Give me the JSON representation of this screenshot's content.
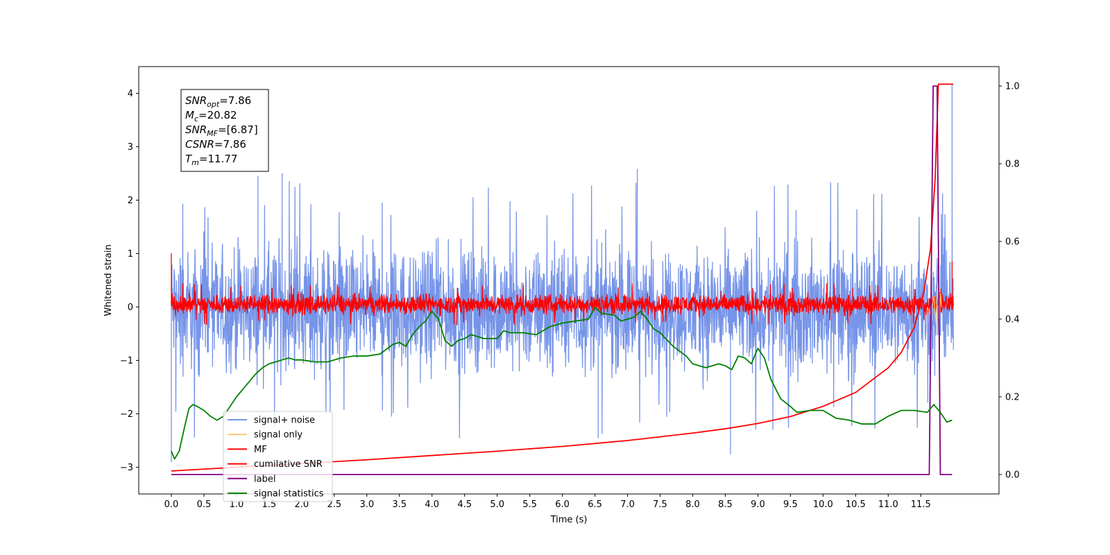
{
  "chart_data": {
    "type": "line",
    "title": "",
    "xlabel": "Time (s)",
    "ylabel": "Whitened strain",
    "y2label": "",
    "xlim": [
      -0.5,
      12.7
    ],
    "ylim": [
      -3.5,
      4.5
    ],
    "y2lim": [
      -0.05,
      1.05
    ],
    "x_ticks": [
      "0.0",
      "0.5",
      "1.0",
      "1.5",
      "2.0",
      "2.5",
      "3.0",
      "3.5",
      "4.0",
      "4.5",
      "5.0",
      "5.5",
      "6.0",
      "6.5",
      "7.0",
      "7.5",
      "8.0",
      "8.5",
      "9.0",
      "9.5",
      "10.0",
      "10.5",
      "11.0",
      "11.5"
    ],
    "y_ticks": [
      "−3",
      "−2",
      "−1",
      "0",
      "1",
      "2",
      "3",
      "4"
    ],
    "y2_ticks": [
      "0.0",
      "0.2",
      "0.4",
      "0.6",
      "0.8",
      "1.0"
    ],
    "info_box": {
      "lines": [
        {
          "sym": "SNR",
          "sub": "opt",
          "val": "=7.86"
        },
        {
          "sym": "M",
          "sub": "c",
          "val": "=20.82"
        },
        {
          "sym": "SNR",
          "sub": "MF",
          "val": "=[6.87]"
        },
        {
          "sym": "CSNR",
          "sub": "",
          "val": "=7.86"
        },
        {
          "sym": "T",
          "sub": "m",
          "val": "=11.77"
        }
      ]
    },
    "legend": {
      "placement": "lower-left",
      "entries": [
        {
          "label": "signal+ noise",
          "color": "#7694e8"
        },
        {
          "label": "signal only",
          "color": "#f7c778"
        },
        {
          "label": "MF",
          "color": "#ff0000"
        },
        {
          "label": "cumilative SNR",
          "color": "#ff0000"
        },
        {
          "label": "label",
          "color": "#800080"
        },
        {
          "label": "signal statistics",
          "color": "#008000"
        }
      ]
    },
    "series": [
      {
        "name": "signal+ noise",
        "kind": "noise_band",
        "axis": "left",
        "color": "#7694e8",
        "x_range": [
          0.0,
          12.0
        ],
        "typical_range": [
          -1.6,
          1.5
        ],
        "peaks": [
          {
            "x": 0.0,
            "y": -2.9
          },
          {
            "x": 1.33,
            "y": 2.45
          },
          {
            "x": 1.7,
            "y": 2.5
          },
          {
            "x": 7.15,
            "y": 2.58
          },
          {
            "x": 6.55,
            "y": -2.45
          },
          {
            "x": 8.58,
            "y": -2.75
          },
          {
            "x": 11.98,
            "y": 4.17
          }
        ]
      },
      {
        "name": "MF",
        "kind": "noise_band",
        "axis": "left",
        "color": "#ff0000",
        "x_range": [
          0.0,
          12.0
        ],
        "typical_range": [
          -0.2,
          0.3
        ],
        "peaks": [
          {
            "x": 0.0,
            "y": 1.0
          },
          {
            "x": 0.0,
            "y": 0.4
          },
          {
            "x": 11.98,
            "y": 0.85
          }
        ]
      },
      {
        "name": "signal only",
        "kind": "line",
        "axis": "left",
        "color": "#f7c778",
        "x": [
          11.6,
          11.65,
          11.7,
          11.73,
          11.76,
          11.78,
          11.8,
          11.82
        ],
        "y": [
          0.0,
          -0.15,
          0.2,
          -0.3,
          0.45,
          -0.5,
          0.25,
          0.0
        ]
      },
      {
        "name": "cumilative SNR",
        "kind": "line",
        "axis": "left",
        "color": "#ff0000",
        "x": [
          0.0,
          1.0,
          2.0,
          3.0,
          4.0,
          5.0,
          6.0,
          7.0,
          8.0,
          8.5,
          9.0,
          9.5,
          10.0,
          10.5,
          11.0,
          11.2,
          11.4,
          11.55,
          11.65,
          11.72,
          11.77,
          11.8,
          12.0
        ],
        "y": [
          -3.07,
          -3.0,
          -2.93,
          -2.86,
          -2.78,
          -2.7,
          -2.61,
          -2.5,
          -2.36,
          -2.28,
          -2.18,
          -2.05,
          -1.86,
          -1.6,
          -1.14,
          -0.85,
          -0.38,
          0.3,
          1.1,
          2.4,
          4.17,
          4.17,
          4.17
        ]
      },
      {
        "name": "label",
        "kind": "line",
        "axis": "right",
        "color": "#800080",
        "x": [
          0.0,
          11.63,
          11.69,
          11.75,
          11.8,
          11.86,
          11.98
        ],
        "y": [
          0.0,
          0.0,
          1.0,
          1.0,
          0.0,
          0.0,
          0.0
        ]
      },
      {
        "name": "signal statistics",
        "kind": "line",
        "axis": "right",
        "color": "#008000",
        "x": [
          0.0,
          0.05,
          0.12,
          0.2,
          0.27,
          0.33,
          0.4,
          0.5,
          0.6,
          0.7,
          0.8,
          0.9,
          1.0,
          1.1,
          1.2,
          1.3,
          1.4,
          1.5,
          1.6,
          1.7,
          1.8,
          1.9,
          2.0,
          2.2,
          2.4,
          2.6,
          2.8,
          3.0,
          3.2,
          3.4,
          3.5,
          3.6,
          3.7,
          3.8,
          3.9,
          4.0,
          4.1,
          4.2,
          4.3,
          4.4,
          4.5,
          4.6,
          4.8,
          5.0,
          5.1,
          5.2,
          5.4,
          5.6,
          5.8,
          6.0,
          6.2,
          6.4,
          6.5,
          6.6,
          6.8,
          6.9,
          7.0,
          7.1,
          7.2,
          7.3,
          7.4,
          7.5,
          7.7,
          7.9,
          8.0,
          8.2,
          8.4,
          8.5,
          8.6,
          8.7,
          8.8,
          8.9,
          9.0,
          9.1,
          9.2,
          9.35,
          9.5,
          9.6,
          9.8,
          10.0,
          10.2,
          10.4,
          10.6,
          10.8,
          11.0,
          11.2,
          11.4,
          11.6,
          11.7,
          11.8,
          11.9,
          11.98
        ],
        "y": [
          0.06,
          0.04,
          0.06,
          0.12,
          0.17,
          0.18,
          0.175,
          0.165,
          0.15,
          0.14,
          0.15,
          0.175,
          0.2,
          0.22,
          0.24,
          0.26,
          0.275,
          0.285,
          0.29,
          0.295,
          0.3,
          0.295,
          0.295,
          0.29,
          0.29,
          0.3,
          0.305,
          0.305,
          0.31,
          0.335,
          0.34,
          0.33,
          0.36,
          0.38,
          0.395,
          0.42,
          0.4,
          0.345,
          0.33,
          0.345,
          0.35,
          0.36,
          0.35,
          0.35,
          0.37,
          0.365,
          0.365,
          0.36,
          0.38,
          0.39,
          0.395,
          0.4,
          0.43,
          0.415,
          0.41,
          0.395,
          0.4,
          0.405,
          0.42,
          0.4,
          0.375,
          0.365,
          0.33,
          0.305,
          0.285,
          0.275,
          0.285,
          0.28,
          0.27,
          0.305,
          0.3,
          0.285,
          0.325,
          0.3,
          0.245,
          0.195,
          0.175,
          0.16,
          0.165,
          0.165,
          0.145,
          0.14,
          0.13,
          0.13,
          0.15,
          0.165,
          0.165,
          0.16,
          0.18,
          0.16,
          0.135,
          0.14
        ]
      }
    ]
  }
}
